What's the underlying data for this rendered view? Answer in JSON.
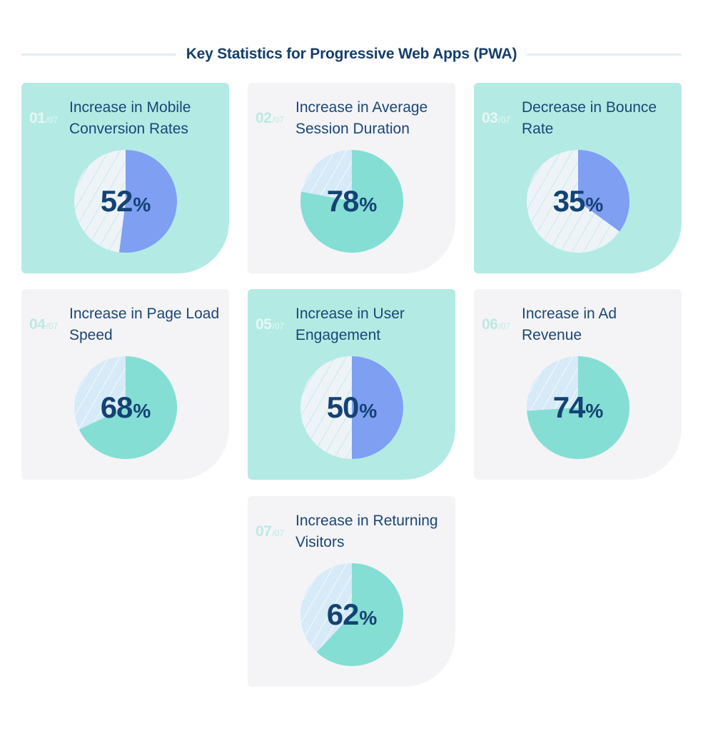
{
  "header": {
    "title": "Key Statistics for Progressive Web Apps (PWA)"
  },
  "colors": {
    "teal_card": "#b3ebe4",
    "gray_card": "#f4f4f6",
    "slice_blue": "#7f9ff3",
    "slice_teal": "#84ded4",
    "rest_light": "#eef3f7",
    "rest_blue": "#d6eaf7",
    "text_dark": "#153e6a"
  },
  "cards": [
    {
      "index": "01",
      "total": "/07",
      "label": "Increase in Mobile Conversion Rates",
      "value": "52",
      "suffix": "%",
      "style": "teal"
    },
    {
      "index": "02",
      "total": "/07",
      "label": "Increase in Average Session Duration",
      "value": "78",
      "suffix": "%",
      "style": "gray"
    },
    {
      "index": "03",
      "total": "/07",
      "label": "Decrease in Bounce Rate",
      "value": "35",
      "suffix": "%",
      "style": "teal"
    },
    {
      "index": "04",
      "total": "/07",
      "label": "Increase in Page Load Speed",
      "value": "68",
      "suffix": "%",
      "style": "gray"
    },
    {
      "index": "05",
      "total": "/07",
      "label": "Increase in User Engagement",
      "value": "50",
      "suffix": "%",
      "style": "teal"
    },
    {
      "index": "06",
      "total": "/07",
      "label": "Increase in Ad Revenue",
      "value": "74",
      "suffix": "%",
      "style": "gray"
    },
    {
      "index": "07",
      "total": "/07",
      "label": "Increase in Returning Visitors",
      "value": "62",
      "suffix": "%",
      "style": "gray"
    }
  ],
  "chart_data": {
    "type": "pie",
    "title": "Key Statistics for Progressive Web Apps (PWA)",
    "categories": [
      "Increase in Mobile Conversion Rates",
      "Increase in Average Session Duration",
      "Decrease in Bounce Rate",
      "Increase in Page Load Speed",
      "Increase in User Engagement",
      "Increase in Ad Revenue",
      "Increase in Returning Visitors"
    ],
    "values": [
      52,
      78,
      35,
      68,
      50,
      74,
      62
    ],
    "unit": "%",
    "layout": "grid of 7 single-value pie charts (3 columns), each slice starting at 12 o'clock going clockwise, remainder hatched"
  }
}
